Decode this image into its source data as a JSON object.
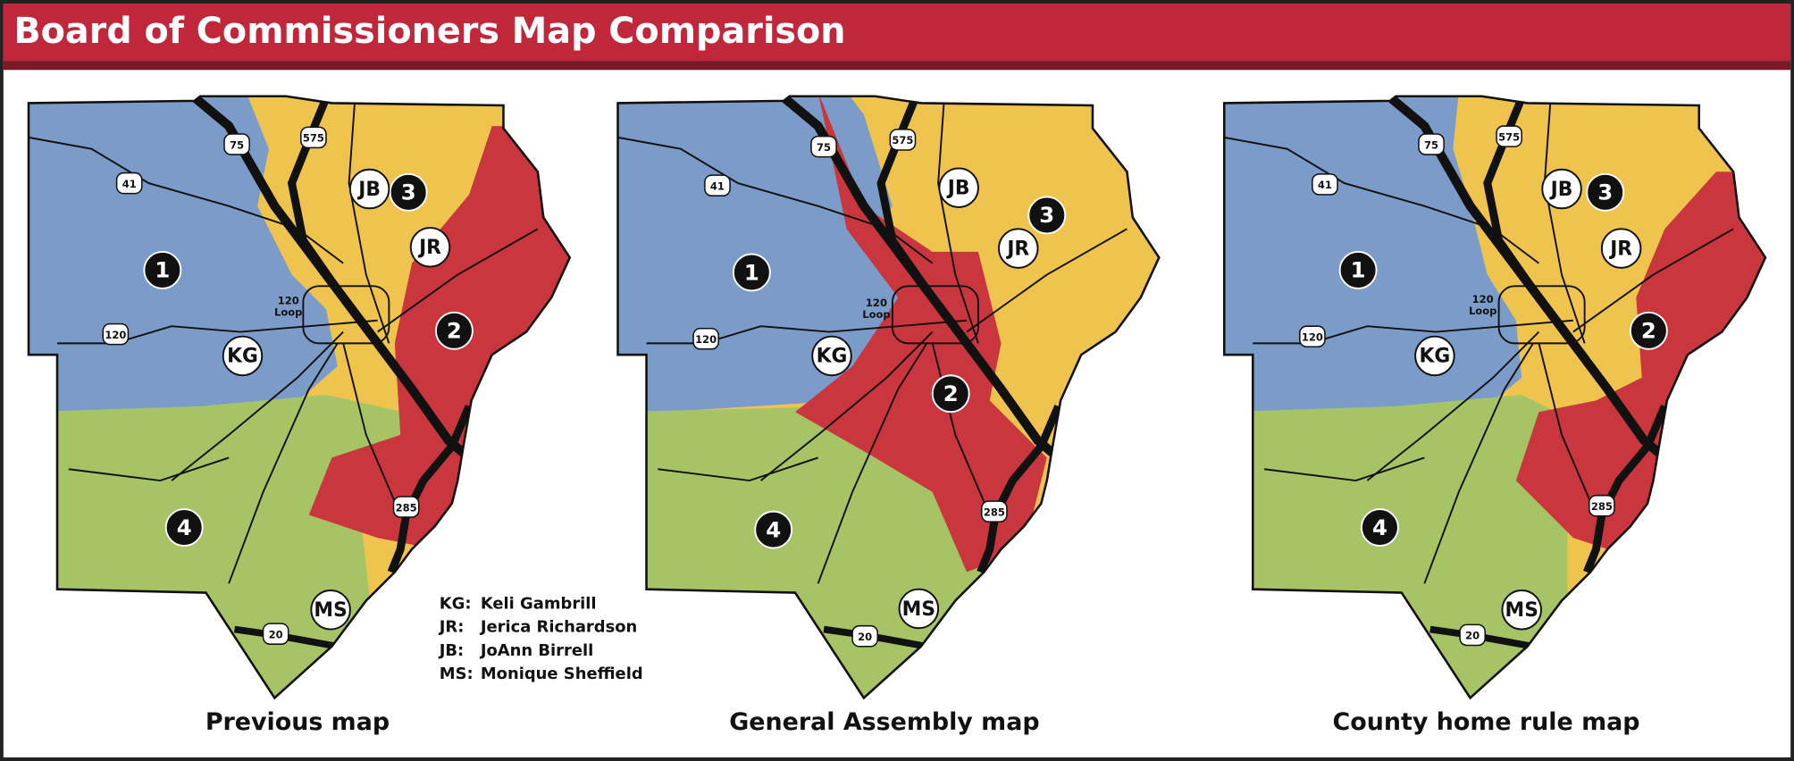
{
  "header": {
    "title": "Board of Commissioners Map Comparison"
  },
  "maps": [
    {
      "caption": "Previous map"
    },
    {
      "caption": "General Assembly map"
    },
    {
      "caption": "County home rule map"
    }
  ],
  "district_labels": [
    "1",
    "2",
    "3",
    "4"
  ],
  "commissioner_labels": [
    "KG",
    "JR",
    "JB",
    "MS"
  ],
  "road_labels": [
    "75",
    "575",
    "41",
    "120",
    "285",
    "20"
  ],
  "loop_label": [
    "120",
    "Loop"
  ],
  "legend": [
    {
      "code": "KG:",
      "name": "Keli Gambrill"
    },
    {
      "code": "JR:",
      "name": "Jerica Richardson"
    },
    {
      "code": "JB:",
      "name": "JoAnn Birrell"
    },
    {
      "code": "MS:",
      "name": "Monique Sheffield"
    }
  ]
}
